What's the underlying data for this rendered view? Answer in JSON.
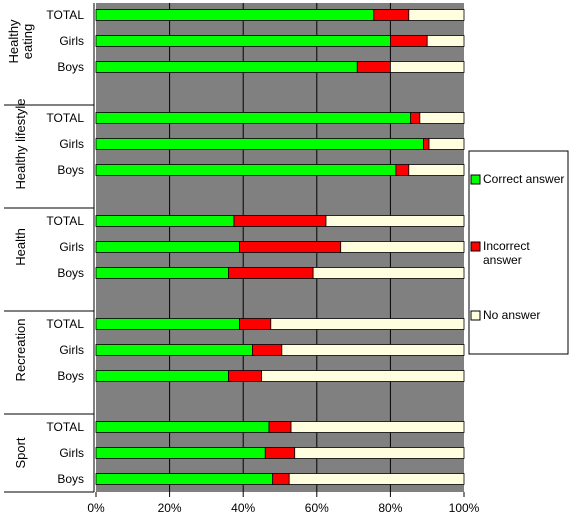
{
  "chart_data": {
    "type": "bar",
    "orientation": "horizontal",
    "stacked": true,
    "xlim": [
      0,
      100
    ],
    "x_ticks": [
      "0%",
      "20%",
      "40%",
      "60%",
      "80%",
      "100%"
    ],
    "grid": "vertical lines at 20% steps",
    "legend_position": "right",
    "colors": {
      "Correct answer": "#00ff00",
      "Incorrect answer": "#ff0000",
      "No answer": "#ffffe0",
      "plot_background": "#808080"
    },
    "series": [
      {
        "name": "Correct answer"
      },
      {
        "name": "Incorrect answer"
      },
      {
        "name": "No answer"
      }
    ],
    "groups": [
      {
        "label": "Healthy eating",
        "label_lines": [
          "Healthy",
          "eating"
        ],
        "rows": [
          {
            "label": "TOTAL",
            "values": [
              75.5,
              9.5,
              15
            ]
          },
          {
            "label": "Girls",
            "values": [
              80,
              10,
              10
            ]
          },
          {
            "label": "Boys",
            "values": [
              71,
              9,
              20
            ]
          }
        ]
      },
      {
        "label": "Healthy lifestyle",
        "label_lines": [
          "Healthy lifestyle"
        ],
        "rows": [
          {
            "label": "TOTAL",
            "values": [
              85.5,
              2.5,
              12
            ]
          },
          {
            "label": "Girls",
            "values": [
              89,
              1.5,
              9.5
            ]
          },
          {
            "label": "Boys",
            "values": [
              81.5,
              3.5,
              15
            ]
          }
        ]
      },
      {
        "label": "Health",
        "label_lines": [
          "Health"
        ],
        "rows": [
          {
            "label": "TOTAL",
            "values": [
              37.5,
              25,
              37.5
            ]
          },
          {
            "label": "Girls",
            "values": [
              39,
              27.5,
              33.5
            ]
          },
          {
            "label": "Boys",
            "values": [
              36,
              23,
              41
            ]
          }
        ]
      },
      {
        "label": "Recreation",
        "label_lines": [
          "Recreation"
        ],
        "rows": [
          {
            "label": "TOTAL",
            "values": [
              39,
              8.5,
              52.5
            ]
          },
          {
            "label": "Girls",
            "values": [
              42.5,
              8,
              49.5
            ]
          },
          {
            "label": "Boys",
            "values": [
              36,
              9,
              55
            ]
          }
        ]
      },
      {
        "label": "Sport",
        "label_lines": [
          "Sport"
        ],
        "rows": [
          {
            "label": "TOTAL",
            "values": [
              47,
              6,
              47
            ]
          },
          {
            "label": "Girls",
            "values": [
              46,
              8,
              46
            ]
          },
          {
            "label": "Boys",
            "values": [
              48,
              4.5,
              47.5
            ]
          }
        ]
      }
    ]
  },
  "legend": {
    "items": [
      {
        "lines": [
          "Correct answer"
        ]
      },
      {
        "lines": [
          "Incorrect",
          "answer"
        ]
      },
      {
        "lines": [
          "No answer"
        ]
      }
    ]
  }
}
